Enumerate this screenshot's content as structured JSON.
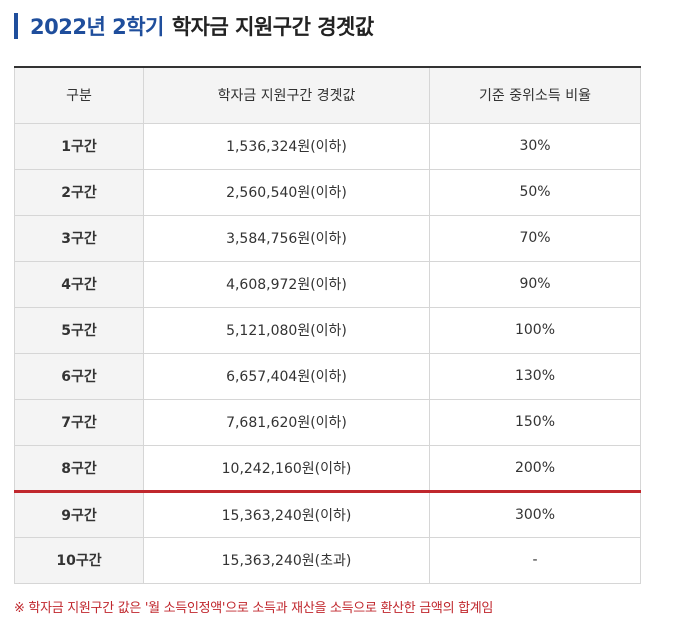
{
  "heading": {
    "accent": "2022년 2학기",
    "rest": "학자금 지원구간 경곗값"
  },
  "table": {
    "headers": [
      "구분",
      "학자금 지원구간 경곗값",
      "기준 중위소득 비율"
    ],
    "rows": [
      {
        "label": "1구간",
        "amount": "1,536,324원(이하)",
        "ratio": "30%"
      },
      {
        "label": "2구간",
        "amount": "2,560,540원(이하)",
        "ratio": "50%"
      },
      {
        "label": "3구간",
        "amount": "3,584,756원(이하)",
        "ratio": "70%"
      },
      {
        "label": "4구간",
        "amount": "4,608,972원(이하)",
        "ratio": "90%"
      },
      {
        "label": "5구간",
        "amount": "5,121,080원(이하)",
        "ratio": "100%"
      },
      {
        "label": "6구간",
        "amount": "6,657,404원(이하)",
        "ratio": "130%"
      },
      {
        "label": "7구간",
        "amount": "7,681,620원(이하)",
        "ratio": "150%"
      },
      {
        "label": "8구간",
        "amount": "10,242,160원(이하)",
        "ratio": "200%"
      },
      {
        "label": "9구간",
        "amount": "15,363,240원(이하)",
        "ratio": "300%"
      },
      {
        "label": "10구간",
        "amount": "15,363,240원(초과)",
        "ratio": "-"
      }
    ]
  },
  "note": "※ 학자금 지원구간 값은 '월 소득인정액'으로 소득과 재산을 소득으로 환산한 금액의 합계임",
  "colors": {
    "accent": "#1f4e9c",
    "divider": "#c0272d",
    "header_bg": "#f4f4f4"
  }
}
